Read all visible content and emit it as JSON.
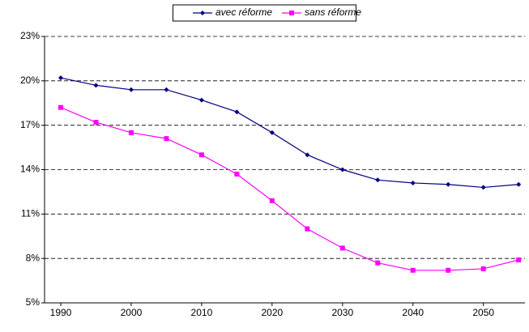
{
  "chart_data": {
    "type": "line",
    "x": [
      1990,
      1995,
      2000,
      2005,
      2010,
      2015,
      2020,
      2025,
      2030,
      2035,
      2040,
      2045,
      2050,
      2055
    ],
    "series": [
      {
        "name": "avec réforme",
        "color": "#000080",
        "marker": "diamond",
        "values": [
          20.2,
          19.7,
          19.4,
          19.4,
          18.7,
          17.9,
          16.5,
          15.0,
          14.0,
          13.3,
          13.1,
          13.0,
          12.8,
          13.0
        ]
      },
      {
        "name": "sans réforme",
        "color": "#ff00ff",
        "marker": "square",
        "values": [
          18.2,
          17.2,
          16.5,
          16.1,
          15.0,
          13.7,
          11.9,
          10.0,
          8.7,
          7.7,
          7.2,
          7.2,
          7.3,
          7.9
        ]
      }
    ],
    "xlim": [
      1987.7,
      2055.9
    ],
    "xticks": [
      1990,
      2000,
      2010,
      2020,
      2030,
      2040,
      2050
    ],
    "ylim": [
      5,
      23
    ],
    "yticks": [
      {
        "value": 5,
        "label": "5%"
      },
      {
        "value": 8,
        "label": "8%"
      },
      {
        "value": 11,
        "label": "11%"
      },
      {
        "value": 14,
        "label": "14%"
      },
      {
        "value": 17,
        "label": "17%"
      },
      {
        "value": 20,
        "label": "20%"
      },
      {
        "value": 23,
        "label": "23%"
      }
    ],
    "grid": true,
    "legend": "top"
  }
}
